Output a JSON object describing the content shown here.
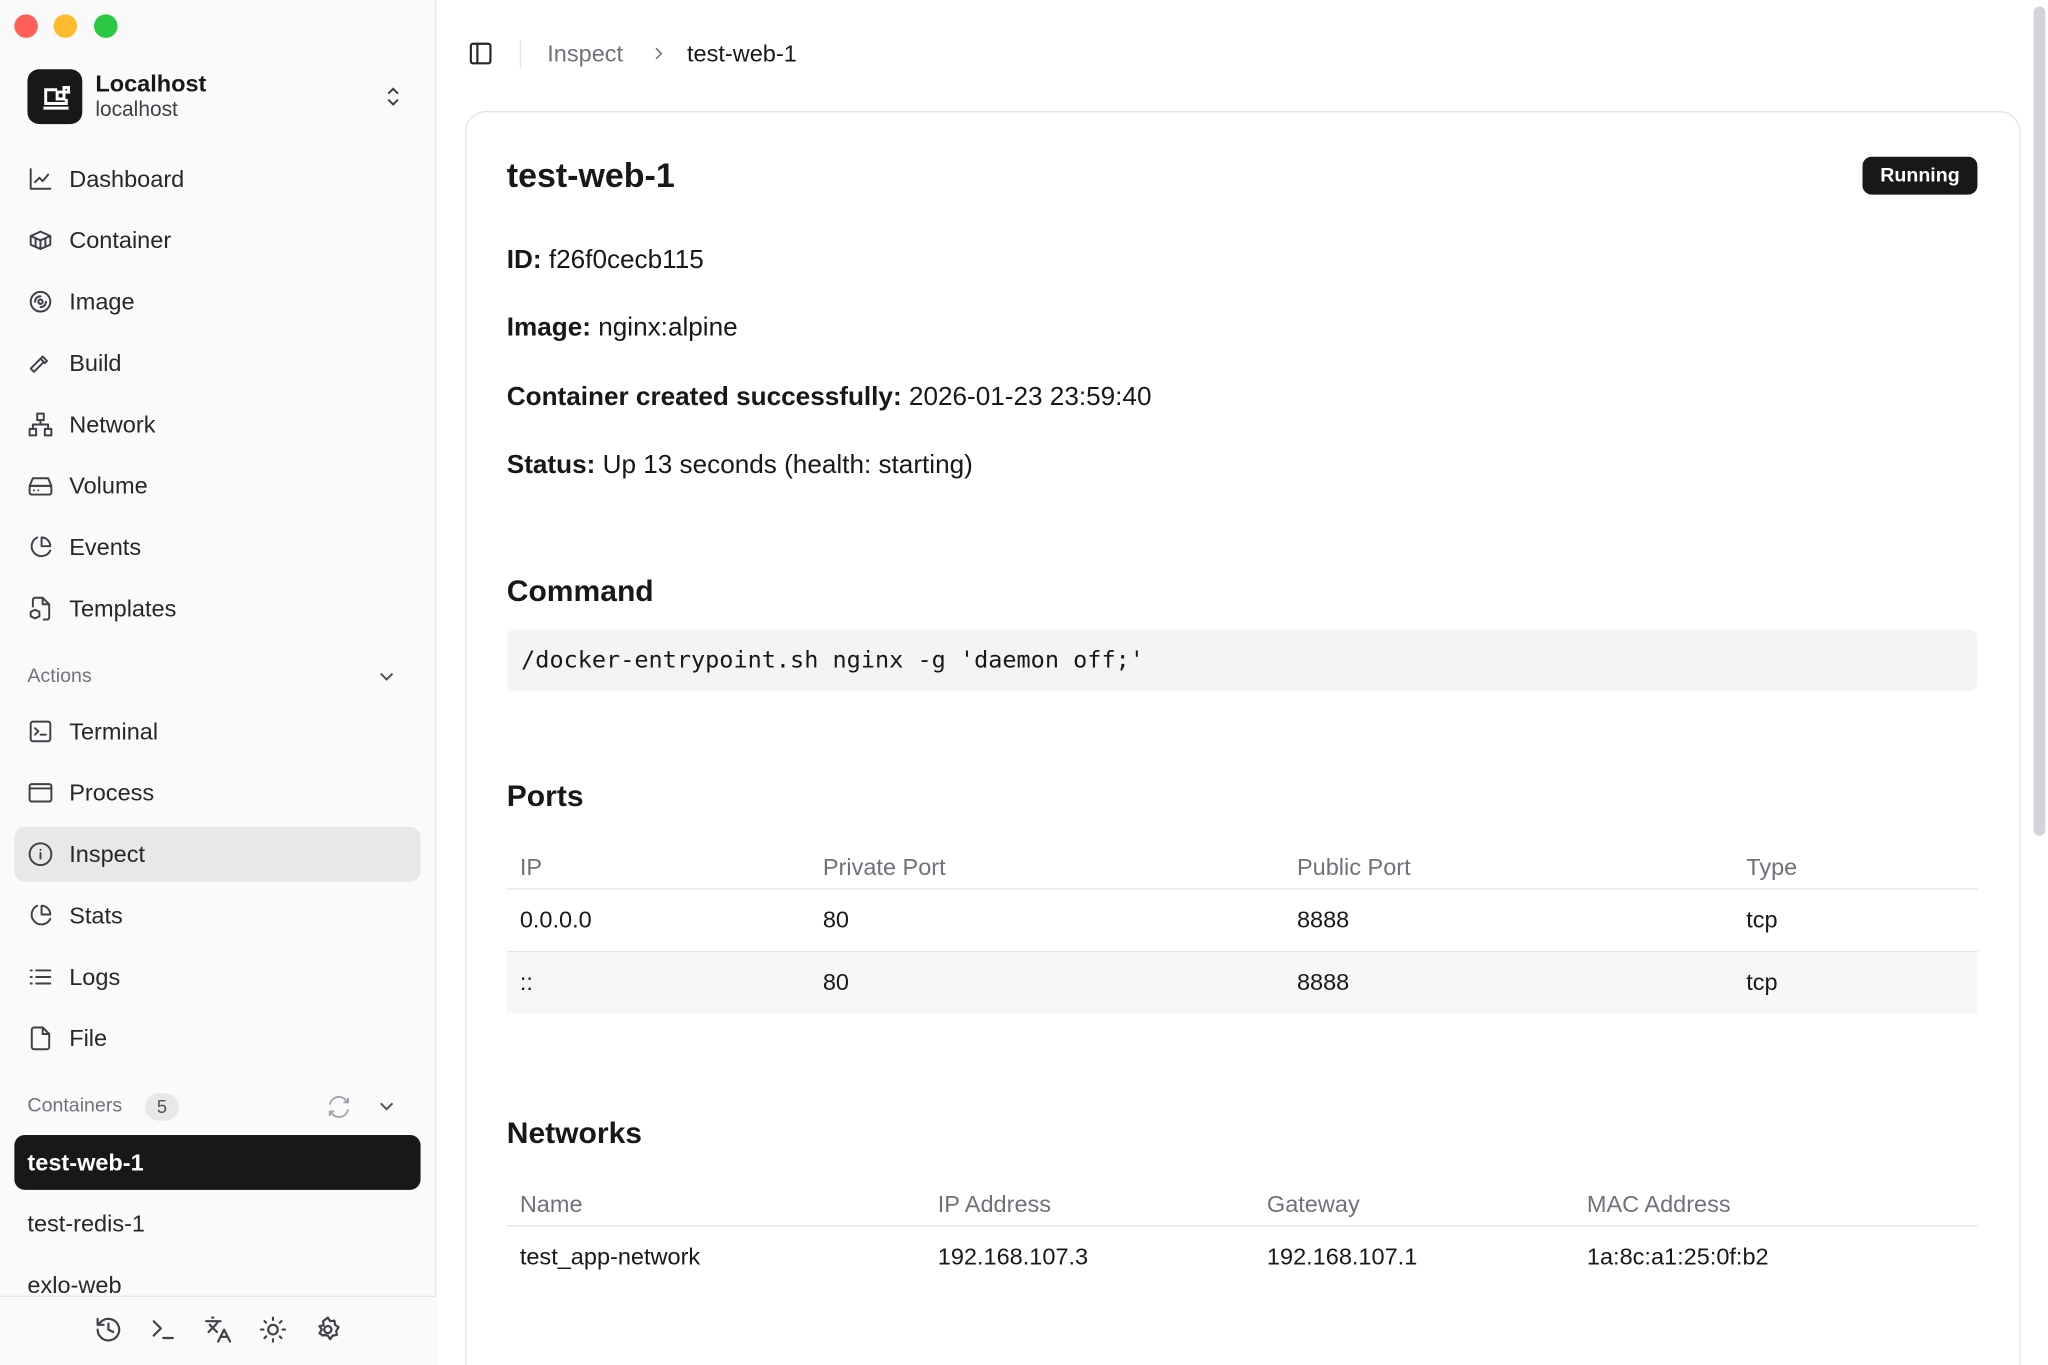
{
  "window": {
    "controls": [
      "close",
      "minimize",
      "maximize"
    ]
  },
  "host": {
    "name": "Localhost",
    "subtitle": "localhost"
  },
  "nav": [
    {
      "label": "Dashboard",
      "icon": "chart-line-icon"
    },
    {
      "label": "Container",
      "icon": "box-icon"
    },
    {
      "label": "Image",
      "icon": "disc-icon"
    },
    {
      "label": "Build",
      "icon": "hammer-icon"
    },
    {
      "label": "Network",
      "icon": "network-icon"
    },
    {
      "label": "Volume",
      "icon": "hard-drive-icon"
    },
    {
      "label": "Events",
      "icon": "pie-chart-icon"
    },
    {
      "label": "Templates",
      "icon": "file-box-icon"
    }
  ],
  "actions": {
    "label": "Actions",
    "items": [
      {
        "label": "Terminal",
        "icon": "terminal-square-icon"
      },
      {
        "label": "Process",
        "icon": "app-window-icon"
      },
      {
        "label": "Inspect",
        "icon": "info-icon",
        "active": true
      },
      {
        "label": "Stats",
        "icon": "pie-chart-icon"
      },
      {
        "label": "Logs",
        "icon": "list-icon"
      },
      {
        "label": "File",
        "icon": "file-icon"
      }
    ]
  },
  "containers": {
    "label": "Containers",
    "count": "5",
    "items": [
      "test-web-1",
      "test-redis-1",
      "exlo-web"
    ],
    "selected": "test-web-1"
  },
  "footer": [
    "history-icon",
    "terminal-icon",
    "languages-icon",
    "sun-icon",
    "settings-icon"
  ],
  "breadcrumb": {
    "parent": "Inspect",
    "current": "test-web-1"
  },
  "detail": {
    "title": "test-web-1",
    "status_badge": "Running",
    "fields": [
      {
        "label": "ID:",
        "value": "f26f0cecb115"
      },
      {
        "label": "Image:",
        "value": "nginx:alpine"
      },
      {
        "label": "Container created successfully:",
        "value": "2026-01-23 23:59:40"
      },
      {
        "label": "Status:",
        "value": "Up 13 seconds (health: starting)"
      }
    ],
    "command_heading": "Command",
    "command": "/docker-entrypoint.sh nginx -g 'daemon off;'",
    "ports_heading": "Ports",
    "ports_columns": [
      "IP",
      "Private Port",
      "Public Port",
      "Type"
    ],
    "ports_rows": [
      [
        "0.0.0.0",
        "80",
        "8888",
        "tcp"
      ],
      [
        "::",
        "80",
        "8888",
        "tcp"
      ]
    ],
    "networks_heading": "Networks",
    "networks_columns": [
      "Name",
      "IP Address",
      "Gateway",
      "MAC Address"
    ],
    "networks_rows": [
      [
        "test_app-network",
        "192.168.107.3",
        "192.168.107.1",
        "1a:8c:a1:25:0f:b2"
      ]
    ]
  },
  "colors": {
    "accent": "#18181b",
    "close": "#fe5f57",
    "minimize": "#febc2e",
    "maximize": "#28c840"
  }
}
